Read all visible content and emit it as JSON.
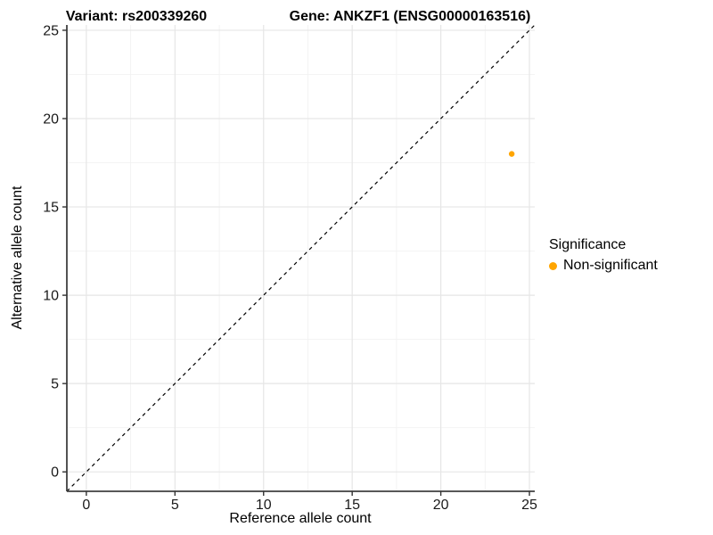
{
  "figure": {
    "title_left": "Variant: rs200339260",
    "title_right": "Gene: ANKZF1 (ENSG00000163516)"
  },
  "chart_data": {
    "type": "scatter",
    "title": "Variant: rs200339260  /  Gene: ANKZF1 (ENSG00000163516)",
    "xlabel": "Reference allele count",
    "ylabel": "Alternative allele count",
    "xlim": [
      -1.1,
      25.3
    ],
    "ylim": [
      -1.1,
      25.3
    ],
    "x_ticks": [
      0,
      5,
      10,
      15,
      20,
      25
    ],
    "y_ticks": [
      0,
      5,
      10,
      15,
      20,
      25
    ],
    "minor_ticks": [
      2.5,
      7.5,
      12.5,
      17.5,
      22.5
    ],
    "grid": true,
    "series": [
      {
        "name": "Non-significant",
        "color": "#FFA500",
        "points": [
          {
            "x": 24,
            "y": 18
          }
        ]
      }
    ],
    "reference_line": {
      "type": "identity",
      "equation": "y = x",
      "style": "dashed",
      "color": "#000000"
    },
    "legend": {
      "title": "Significance",
      "position": "right",
      "items": [
        {
          "label": "Non-significant",
          "color": "#FFA500"
        }
      ]
    }
  },
  "colors": {
    "background": "#ffffff",
    "grid_major": "#e6e6e6",
    "grid_minor": "#f2f2f2",
    "axis_line": "#404040",
    "tick_mark": "#333333",
    "tick_label": "#1a1a1a",
    "point": "#FFA500"
  }
}
